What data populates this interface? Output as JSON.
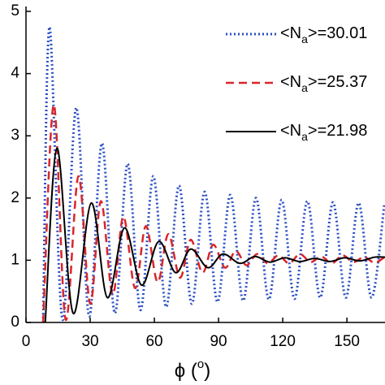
{
  "chart_data": {
    "type": "line",
    "xlabel_parts": [
      "ϕ (",
      "o",
      ")"
    ],
    "xlim": [
      0,
      167.8
    ],
    "ylim": [
      0,
      5
    ],
    "xticks": [
      0,
      30,
      60,
      90,
      120,
      150
    ],
    "yticks": [
      0,
      1,
      2,
      3,
      4,
      5
    ],
    "series": [
      {
        "name_parts": [
          "<N",
          "a",
          ">=30.01"
        ],
        "color": "#2a4fc4",
        "dash": "dotted",
        "x": [
          8,
          11,
          17,
          23.5,
          29.5,
          35.5,
          41.5,
          47.5,
          53.5,
          59.5,
          65.5,
          71.5,
          77.5,
          83.5,
          89.5,
          95.5,
          101.5,
          107.5,
          113.5,
          119.5,
          125.5,
          131.5,
          137.5,
          143.5,
          149.5,
          155.5,
          161.5,
          167.5
        ],
        "values": [
          0,
          4.75,
          0.05,
          3.45,
          0.1,
          2.88,
          0.15,
          2.55,
          0.2,
          2.35,
          0.25,
          2.2,
          0.3,
          2.1,
          0.33,
          2.05,
          0.35,
          2.0,
          0.37,
          1.97,
          0.38,
          1.95,
          0.4,
          1.93,
          0.4,
          1.92,
          0.4,
          1.9
        ]
      },
      {
        "name_parts": [
          "<N",
          "a",
          ">=25.37"
        ],
        "color": "#d9262a",
        "dash": "dashed",
        "x": [
          8,
          13,
          18.5,
          24.5,
          30,
          35,
          40.5,
          45.5,
          51,
          56,
          61.5,
          66.5,
          72,
          77,
          82.5,
          87.5,
          93,
          98,
          103,
          108,
          113,
          118,
          123,
          128,
          133,
          138,
          143,
          148,
          153,
          158,
          163,
          167.5
        ],
        "values": [
          0,
          3.5,
          0.05,
          2.35,
          0.3,
          1.95,
          0.45,
          1.7,
          0.55,
          1.55,
          0.65,
          1.42,
          0.72,
          1.33,
          0.8,
          1.25,
          0.88,
          1.15,
          0.92,
          1.1,
          0.95,
          1.08,
          0.95,
          1.1,
          0.97,
          1.06,
          0.95,
          1.08,
          0.97,
          1.05,
          0.96,
          1.05
        ]
      },
      {
        "name_parts": [
          "<N",
          "a",
          ">=21.98"
        ],
        "color": "#000000",
        "dash": "solid",
        "x": [
          9,
          14.5,
          22,
          30.5,
          38,
          46,
          54,
          62,
          70,
          77,
          85,
          92,
          100,
          107,
          114,
          121,
          128,
          135,
          142,
          149,
          156,
          163,
          167.8
        ],
        "values": [
          0,
          2.8,
          0.15,
          1.92,
          0.4,
          1.52,
          0.6,
          1.3,
          0.8,
          1.18,
          0.88,
          1.1,
          0.95,
          1.06,
          0.97,
          1.04,
          0.98,
          1.03,
          0.98,
          1.04,
          0.99,
          1.05,
          1.05
        ]
      }
    ]
  }
}
